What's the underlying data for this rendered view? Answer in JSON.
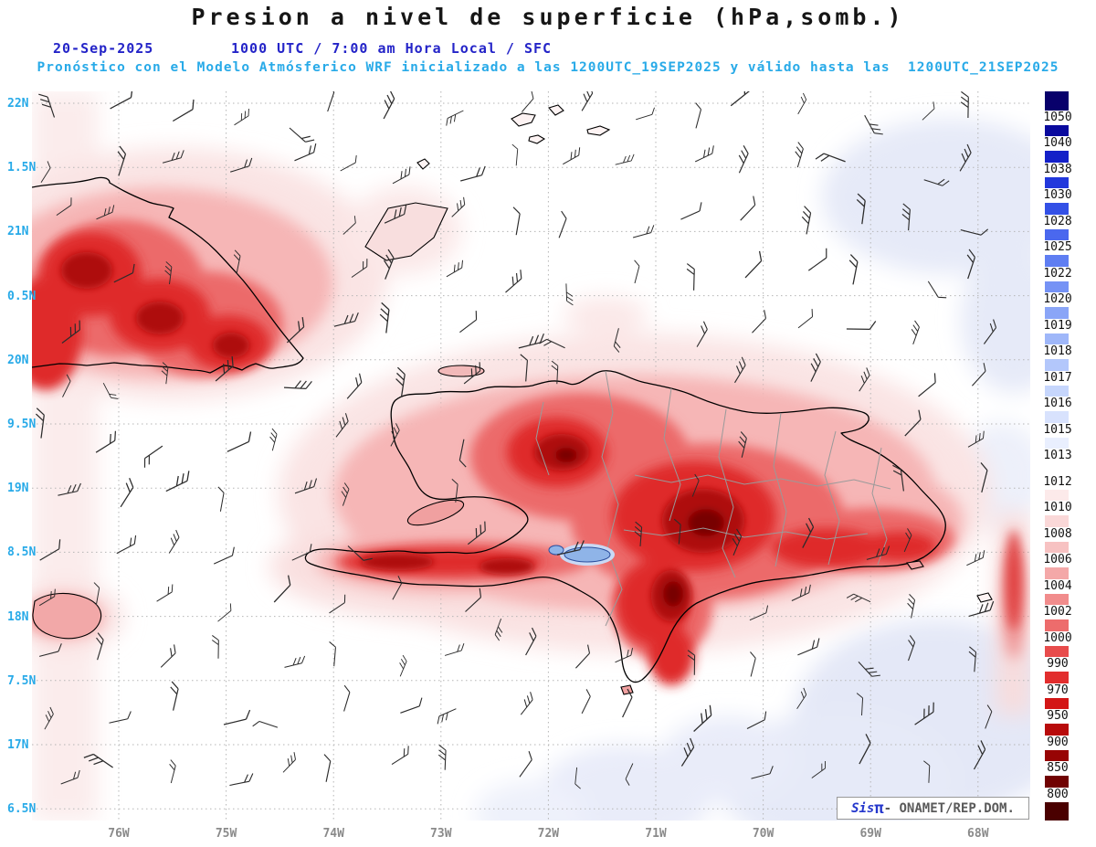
{
  "header": {
    "title": "Presion a nivel de superficie (hPa,somb.)",
    "date": "20-Sep-2025",
    "valid_time": "1000 UTC / 7:00 am Hora Local / SFC",
    "forecast": "Pronóstico con el Modelo Atmósferico WRF inicializado a las 1200UTC_19SEP2025 y válido hasta las  1200UTC_21SEP2025"
  },
  "axes": {
    "lat_labels": [
      "22N",
      "1.5N",
      "21N",
      "0.5N",
      "20N",
      "9.5N",
      "19N",
      "8.5N",
      "18N",
      "7.5N",
      "17N",
      "6.5N"
    ],
    "lon_labels": [
      "76W",
      "75W",
      "74W",
      "73W",
      "72W",
      "71W",
      "70W",
      "69W",
      "68W"
    ]
  },
  "colorbar": {
    "unit": "hPa",
    "labels": [
      "1050",
      "1040",
      "1038",
      "1030",
      "1028",
      "1025",
      "1022",
      "1020",
      "1019",
      "1018",
      "1017",
      "1016",
      "1015",
      "1013",
      "1012",
      "1010",
      "1008",
      "1006",
      "1004",
      "1002",
      "1000",
      "990",
      "970",
      "950",
      "900",
      "850",
      "800"
    ],
    "colors": [
      "#08006b",
      "#0a0a9e",
      "#1420c8",
      "#2238dc",
      "#3350e6",
      "#4a68ee",
      "#5f7ef2",
      "#7592f5",
      "#8aa5f7",
      "#9fb7f9",
      "#b3c7fb",
      "#c6d6fc",
      "#d8e2fd",
      "#e9effe",
      "#ffffff",
      "#fceaea",
      "#fad8d8",
      "#f7c2c2",
      "#f4a8a8",
      "#f18c8c",
      "#ed6c6c",
      "#e84c4c",
      "#e22e2e",
      "#d31616",
      "#b80b0b",
      "#970404",
      "#700101",
      "#4a0000"
    ]
  },
  "branding": {
    "sis": "Sis",
    "pi": "π",
    "org": "- ONAMET/REP.DOM."
  },
  "colors": {
    "title_text": "#161616",
    "date_blue": "#2424c8",
    "model_cyan": "#28aae8",
    "lon_gray": "#8a8a8a"
  }
}
